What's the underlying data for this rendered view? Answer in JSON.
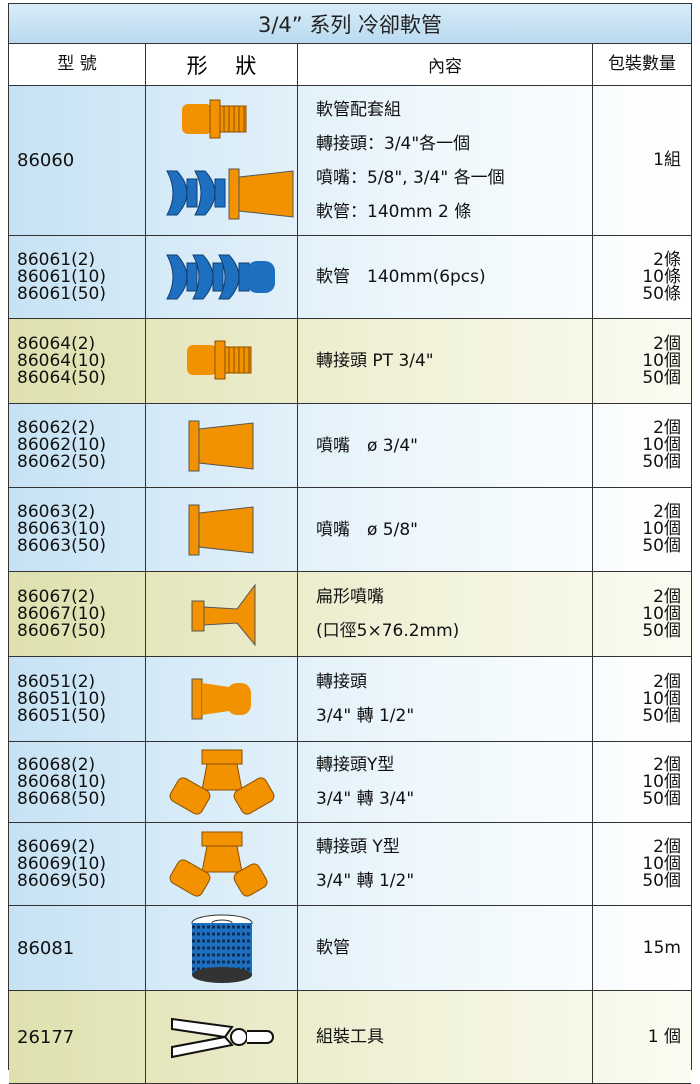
{
  "header": {
    "title": "3/4” 系列 冷卻軟管",
    "columns": [
      "型 號",
      "形　 狀",
      "內容",
      "包裝數量"
    ]
  },
  "rows": [
    {
      "model": [
        "86060"
      ],
      "content": [
        "軟管配套組",
        "轉接頭：3/4\"各一個",
        "噴嘴：5/8\", 3/4\" 各一個",
        "軟管：140mm 2 條"
      ],
      "qty": [
        "1組"
      ]
    },
    {
      "model": [
        "86061(2)",
        "86061(10)",
        "86061(50)"
      ],
      "content": [
        "軟管　140mm(6pcs)"
      ],
      "qty": [
        "2條",
        "10條",
        "50條"
      ]
    },
    {
      "model": [
        "86064(2)",
        "86064(10)",
        "86064(50)"
      ],
      "content": [
        "轉接頭  PT 3/4\""
      ],
      "qty": [
        "2個",
        "10個",
        "50個"
      ]
    },
    {
      "model": [
        "86062(2)",
        "86062(10)",
        "86062(50)"
      ],
      "content": [
        "噴嘴　ø 3/4\""
      ],
      "qty": [
        "2個",
        "10個",
        "50個"
      ]
    },
    {
      "model": [
        "86063(2)",
        "86063(10)",
        "86063(50)"
      ],
      "content": [
        "噴嘴　ø 5/8\""
      ],
      "qty": [
        "2個",
        "10個",
        "50個"
      ]
    },
    {
      "model": [
        "86067(2)",
        "86067(10)",
        "86067(50)"
      ],
      "content": [
        "扁形噴嘴",
        "(口徑5×76.2mm)"
      ],
      "qty": [
        "2個",
        "10個",
        "50個"
      ]
    },
    {
      "model": [
        "86051(2)",
        "86051(10)",
        "86051(50)"
      ],
      "content": [
        "轉接頭",
        "3/4\"  轉  1/2\""
      ],
      "qty": [
        "2個",
        "10個",
        "50個"
      ]
    },
    {
      "model": [
        "86068(2)",
        "86068(10)",
        "86068(50)"
      ],
      "content": [
        "轉接頭Y型",
        "3/4\"  轉  3/4\""
      ],
      "qty": [
        "2個",
        "10個",
        "50個"
      ]
    },
    {
      "model": [
        "86069(2)",
        "86069(10)",
        "86069(50)"
      ],
      "content": [
        "轉接頭  Y型",
        "3/4\"  轉  1/2\""
      ],
      "qty": [
        "2個",
        "10個",
        "50個"
      ]
    },
    {
      "model": [
        "86081"
      ],
      "content": [
        "軟管"
      ],
      "qty": [
        "15m"
      ]
    },
    {
      "model": [
        "26177"
      ],
      "content": [
        "組裝工具"
      ],
      "qty": [
        "1 個"
      ]
    }
  ]
}
